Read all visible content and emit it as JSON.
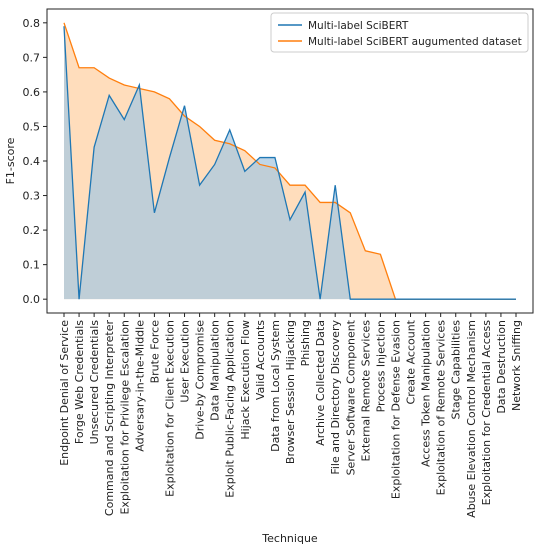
{
  "chart_data": {
    "type": "area",
    "xlabel": "Technique",
    "ylabel": "F1-score",
    "ylim": [
      -0.04,
      0.84
    ],
    "yticks": [
      0.0,
      0.1,
      0.2,
      0.3,
      0.4,
      0.5,
      0.6,
      0.7,
      0.8
    ],
    "ytick_labels": [
      "0.0",
      "0.1",
      "0.2",
      "0.3",
      "0.4",
      "0.5",
      "0.6",
      "0.7",
      "0.8"
    ],
    "grid": false,
    "legend_position": "top-right",
    "categories": [
      "Endpoint Denial of Service",
      "Forge Web Credentials",
      "Unsecured Credentials",
      "Command and Scripting Interpreter",
      "Exploitation for Privilege Escalation",
      "Adversary-in-the-Middle",
      "Brute Force",
      "Exploitation for Client Execution",
      "User Execution",
      "Drive-by Compromise",
      "Data Manipulation",
      "Exploit Public-Facing Application",
      "Hijack Execution Flow",
      "Valid Accounts",
      "Data from Local System",
      "Browser Session Hijacking",
      "Phishing",
      "Archive Collected Data",
      "File and Directory Discovery",
      "Server Software Component",
      "External Remote Services",
      "Process Injection",
      "Exploitation for Defense Evasion",
      "Create Account",
      "Access Token Manipulation",
      "Exploitation of Remote Services",
      "Stage Capabilities",
      "Abuse Elevation Control Mechanism",
      "Exploitation for Credential Access",
      "Data Destruction",
      "Network Sniffing"
    ],
    "series": [
      {
        "name": "Multi-label SciBERT",
        "color": "#1f77b4",
        "fill": "#a9c8e0",
        "values": [
          0.79,
          0.0,
          0.44,
          0.59,
          0.52,
          0.62,
          0.25,
          0.41,
          0.56,
          0.33,
          0.39,
          0.49,
          0.37,
          0.41,
          0.41,
          0.23,
          0.31,
          0.0,
          0.33,
          0.0,
          0.0,
          0.0,
          0.0,
          0.0,
          0.0,
          0.0,
          0.0,
          0.0,
          0.0,
          0.0,
          0.0
        ]
      },
      {
        "name": "Multi-label SciBERT augumented dataset",
        "color": "#ff7f0e",
        "fill": "#ffd9b5",
        "values": [
          0.8,
          0.67,
          0.67,
          0.64,
          0.62,
          0.61,
          0.6,
          0.58,
          0.53,
          0.5,
          0.46,
          0.45,
          0.43,
          0.39,
          0.38,
          0.33,
          0.33,
          0.28,
          0.28,
          0.25,
          0.14,
          0.13,
          0.0,
          0.0,
          0.0,
          0.0,
          0.0,
          0.0,
          0.0,
          0.0,
          0.0
        ]
      }
    ]
  }
}
